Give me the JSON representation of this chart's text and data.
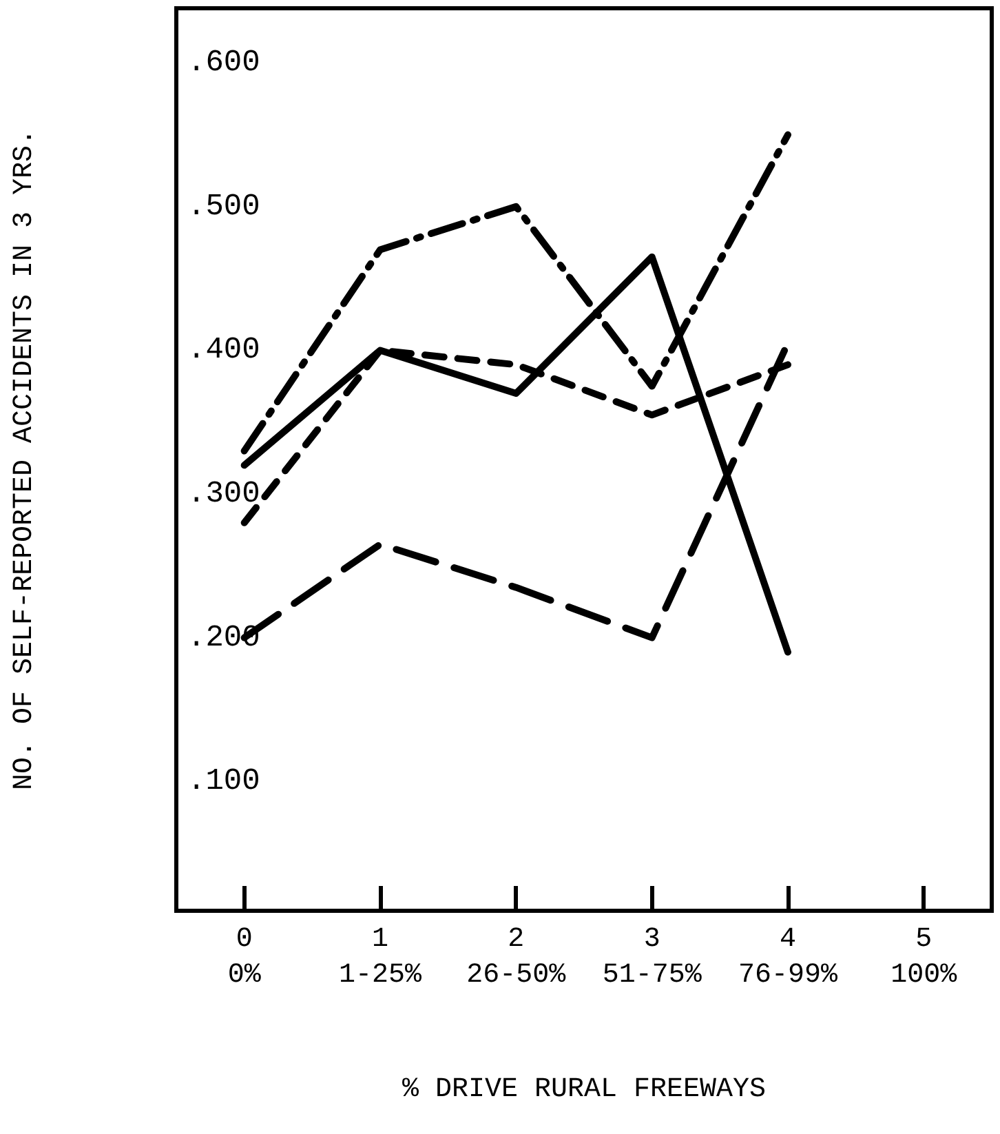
{
  "chart_data": {
    "type": "line",
    "xlabel": "% DRIVE RURAL FREEWAYS",
    "ylabel": "NO. OF SELF-REPORTED ACCIDENTS IN 3 YRS.",
    "categories": [
      "0\n0%",
      "1\n1-25%",
      "2\n26-50%",
      "3\n51-75%",
      "4\n76-99%",
      "5\n100%"
    ],
    "ylim": [
      0.01,
      0.638
    ],
    "yticks": [
      {
        "value": 0.1,
        "label": ".100"
      },
      {
        "value": 0.2,
        "label": ".200"
      },
      {
        "value": 0.3,
        "label": ".300"
      },
      {
        "value": 0.4,
        "label": ".400"
      },
      {
        "value": 0.5,
        "label": ".500"
      },
      {
        "value": 0.6,
        "label": ".600"
      }
    ],
    "series": [
      {
        "color": "#000000",
        "line_style": "dashdot",
        "values": [
          0.33,
          0.47,
          0.5,
          0.375,
          0.55,
          null
        ]
      },
      {
        "color": "#000000",
        "line_style": "solid",
        "values": [
          0.32,
          0.4,
          0.37,
          0.465,
          0.19,
          null
        ]
      },
      {
        "color": "#000000",
        "line_style": "dashed",
        "values": [
          0.28,
          0.4,
          0.39,
          0.355,
          0.39,
          null
        ]
      },
      {
        "color": "#000000",
        "line_style": "longdash",
        "values": [
          0.2,
          0.265,
          0.235,
          0.2,
          0.405,
          null
        ]
      }
    ],
    "marker": "none",
    "grid": false
  }
}
